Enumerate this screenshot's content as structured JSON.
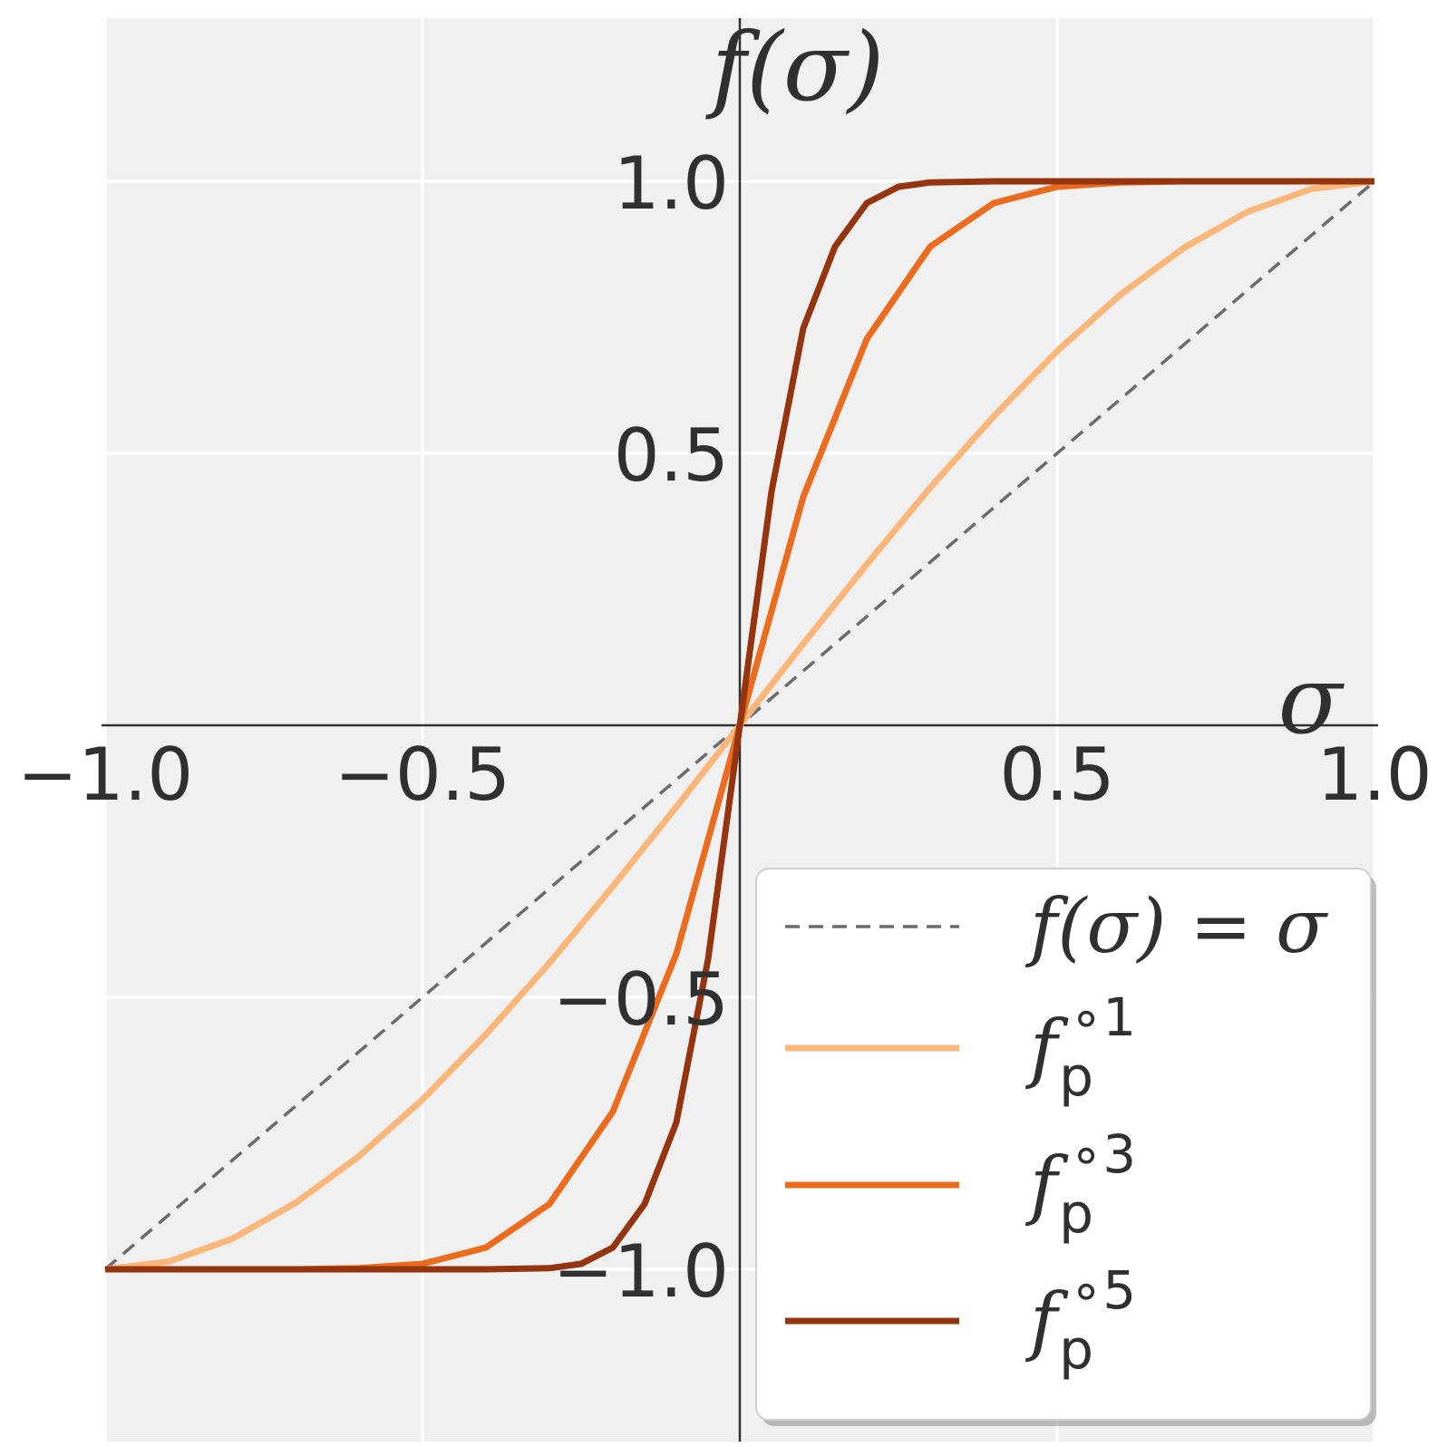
{
  "chart_data": {
    "type": "line",
    "xlabel": "σ",
    "ylabel": "f(σ)",
    "xlim": [
      -1.0,
      1.0
    ],
    "ylim": [
      -1.3,
      1.3
    ],
    "xticks": [
      -1.0,
      -0.5,
      0.5,
      1.0
    ],
    "xtick_labels": [
      "−1.0",
      "−0.5",
      "0.5",
      "1.0"
    ],
    "yticks": [
      1.0,
      0.5,
      -0.5,
      -1.0
    ],
    "ytick_labels": [
      "1.0",
      "0.5",
      "−0.5",
      "−1.0"
    ],
    "grid": true,
    "legend_position": "lower-right",
    "series": [
      {
        "name": "f(σ) = σ",
        "style": "dashed",
        "color": "#6b6b6b",
        "x": [
          -1.0,
          -0.75,
          -0.5,
          -0.25,
          0.0,
          0.25,
          0.5,
          0.75,
          1.0
        ],
        "y": [
          -1.0,
          -0.75,
          -0.5,
          -0.25,
          0.0,
          0.25,
          0.5,
          0.75,
          1.0
        ]
      },
      {
        "name": "f_p^{∘1}",
        "legend_base": "f",
        "legend_sub": "p",
        "legend_sup": "∘1",
        "style": "solid",
        "color": "#fbb77a",
        "x": [
          -1.0,
          -0.9,
          -0.8,
          -0.7,
          -0.6,
          -0.5,
          -0.4,
          -0.3,
          -0.2,
          -0.1,
          0.0,
          0.1,
          0.2,
          0.3,
          0.4,
          0.5,
          0.6,
          0.7,
          0.8,
          0.9,
          1.0
        ],
        "y": [
          -1.0,
          -0.986,
          -0.944,
          -0.878,
          -0.792,
          -0.688,
          -0.568,
          -0.437,
          -0.296,
          -0.15,
          0.0,
          0.15,
          0.296,
          0.437,
          0.568,
          0.688,
          0.792,
          0.878,
          0.944,
          0.986,
          1.0
        ]
      },
      {
        "name": "f_p^{∘3}",
        "legend_base": "f",
        "legend_sub": "p",
        "legend_sup": "∘3",
        "style": "solid",
        "color": "#ec6c1f",
        "x": [
          -1.0,
          -0.9,
          -0.8,
          -0.7,
          -0.6,
          -0.5,
          -0.4,
          -0.3,
          -0.2,
          -0.1,
          0.0,
          0.1,
          0.2,
          0.3,
          0.4,
          0.5,
          0.6,
          0.7,
          0.8,
          0.9,
          1.0
        ],
        "y": [
          -1.0,
          -1.0,
          -1.0,
          -1.0,
          -0.998,
          -0.99,
          -0.96,
          -0.88,
          -0.71,
          -0.42,
          0.0,
          0.42,
          0.71,
          0.88,
          0.96,
          0.99,
          0.998,
          1.0,
          1.0,
          1.0,
          1.0
        ]
      },
      {
        "name": "f_p^{∘5}",
        "legend_base": "f",
        "legend_sub": "p",
        "legend_sup": "∘5",
        "style": "solid",
        "color": "#943510",
        "x": [
          -1.0,
          -0.8,
          -0.6,
          -0.4,
          -0.3,
          -0.25,
          -0.2,
          -0.15,
          -0.1,
          -0.05,
          0.0,
          0.05,
          0.1,
          0.15,
          0.2,
          0.25,
          0.3,
          0.4,
          0.6,
          0.8,
          1.0
        ],
        "y": [
          -1.0,
          -1.0,
          -1.0,
          -1.0,
          -0.998,
          -0.99,
          -0.96,
          -0.88,
          -0.73,
          -0.43,
          0.0,
          0.43,
          0.73,
          0.88,
          0.96,
          0.99,
          0.998,
          1.0,
          1.0,
          1.0,
          1.0
        ]
      }
    ]
  }
}
